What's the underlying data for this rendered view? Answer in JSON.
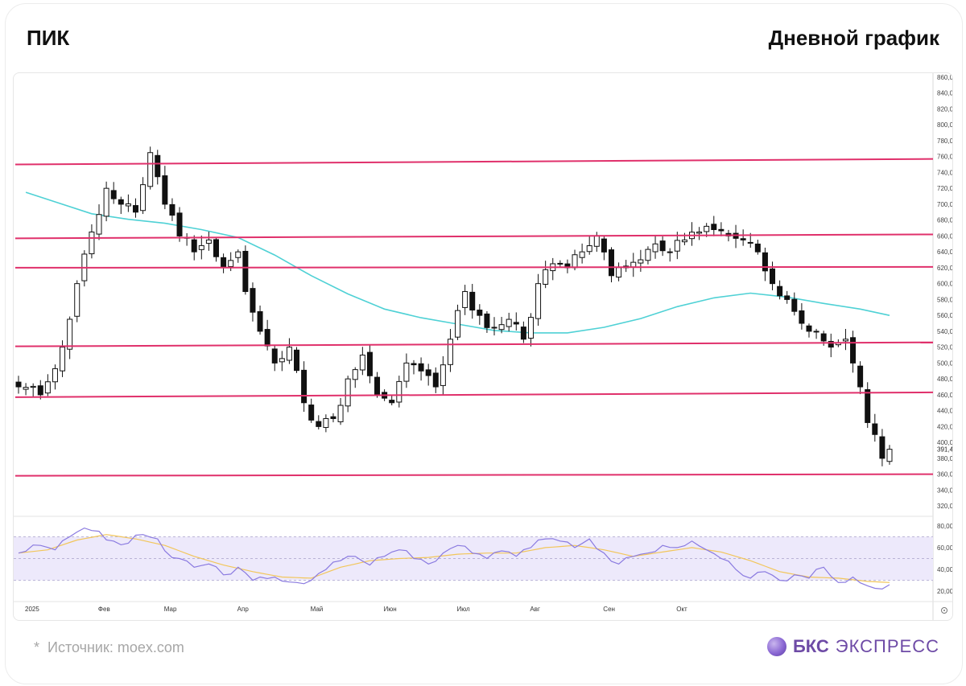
{
  "header": {
    "ticker": "ПИК",
    "timeframe": "Дневной график"
  },
  "footer": {
    "star": "*",
    "source": "Источник: moex.com",
    "brand_strong": "БКС",
    "brand_light": "ЭКСПРЕСС"
  },
  "colors": {
    "level": "#e0306b",
    "ma": "#4fd1d5",
    "candle": "#111111",
    "rsi": "#8a7ae0",
    "rsi_signal": "#f2c65a",
    "rsi_band": "#ede9fb"
  },
  "chart_data": {
    "type": "candlestick",
    "y_ticks": [
      "860,0",
      "840,0",
      "820,0",
      "800,0",
      "780,0",
      "760,0",
      "740,0",
      "720,0",
      "700,0",
      "680,0",
      "660,0",
      "640,0",
      "620,0",
      "600,0",
      "580,0",
      "560,0",
      "540,0",
      "520,0",
      "500,0",
      "480,0",
      "460,0",
      "440,0",
      "420,0",
      "400,0",
      "380,0",
      "360,0",
      "340,0",
      "320,0"
    ],
    "y_range": [
      310,
      865
    ],
    "last_price_label": "391,4",
    "last_price": 391.4,
    "x_labels": [
      "2025",
      "Фев",
      "Мар",
      "Апр",
      "Май",
      "Июн",
      "Июл",
      "Авг",
      "Сен",
      "Окт"
    ],
    "levels": [
      {
        "from": 750,
        "to": 757
      },
      {
        "from": 657,
        "to": 662
      },
      {
        "from": 620,
        "to": 621
      },
      {
        "from": 521,
        "to": 526
      },
      {
        "from": 457,
        "to": 463
      },
      {
        "from": 358,
        "to": 360
      }
    ],
    "ma_points": [
      [
        1,
        715
      ],
      [
        5,
        703
      ],
      [
        10,
        688
      ],
      [
        15,
        681
      ],
      [
        20,
        676
      ],
      [
        25,
        668
      ],
      [
        30,
        658
      ],
      [
        35,
        636
      ],
      [
        40,
        610
      ],
      [
        45,
        587
      ],
      [
        50,
        568
      ],
      [
        55,
        557
      ],
      [
        60,
        549
      ],
      [
        65,
        541
      ],
      [
        70,
        538
      ],
      [
        75,
        538
      ],
      [
        80,
        545
      ],
      [
        85,
        556
      ],
      [
        90,
        571
      ],
      [
        95,
        582
      ],
      [
        100,
        588
      ],
      [
        105,
        583
      ],
      [
        110,
        575
      ],
      [
        115,
        568
      ],
      [
        119,
        560
      ]
    ],
    "close_anchors": [
      [
        0,
        470
      ],
      [
        3,
        460
      ],
      [
        6,
        520
      ],
      [
        8,
        600
      ],
      [
        10,
        665
      ],
      [
        12,
        720
      ],
      [
        14,
        700
      ],
      [
        16,
        690
      ],
      [
        18,
        765
      ],
      [
        20,
        700
      ],
      [
        22,
        660
      ],
      [
        24,
        640
      ],
      [
        26,
        655
      ],
      [
        28,
        620
      ],
      [
        30,
        640
      ],
      [
        31,
        590
      ],
      [
        33,
        540
      ],
      [
        35,
        500
      ],
      [
        37,
        520
      ],
      [
        39,
        450
      ],
      [
        41,
        420
      ],
      [
        43,
        430
      ],
      [
        45,
        480
      ],
      [
        47,
        510
      ],
      [
        49,
        460
      ],
      [
        51,
        450
      ],
      [
        53,
        500
      ],
      [
        55,
        490
      ],
      [
        57,
        470
      ],
      [
        59,
        530
      ],
      [
        61,
        590
      ],
      [
        63,
        560
      ],
      [
        65,
        545
      ],
      [
        67,
        555
      ],
      [
        69,
        530
      ],
      [
        71,
        600
      ],
      [
        73,
        625
      ],
      [
        75,
        620
      ],
      [
        77,
        640
      ],
      [
        79,
        660
      ],
      [
        81,
        610
      ],
      [
        83,
        620
      ],
      [
        85,
        630
      ],
      [
        87,
        650
      ],
      [
        89,
        640
      ],
      [
        91,
        655
      ],
      [
        93,
        665
      ],
      [
        95,
        668
      ],
      [
        97,
        660
      ],
      [
        99,
        655
      ],
      [
        101,
        640
      ],
      [
        103,
        600
      ],
      [
        105,
        580
      ],
      [
        107,
        550
      ],
      [
        109,
        540
      ],
      [
        111,
        520
      ],
      [
        113,
        530
      ],
      [
        114,
        500
      ],
      [
        115,
        470
      ],
      [
        116,
        425
      ],
      [
        117,
        410
      ],
      [
        118,
        380
      ],
      [
        119,
        391.4
      ]
    ],
    "rsi": {
      "y_ticks": [
        "80,00",
        "60,00",
        "40,00",
        "20,00"
      ],
      "y_range": [
        12,
        88
      ],
      "band": [
        30,
        70
      ],
      "mid": 50,
      "rsi_anchors": [
        [
          0,
          55
        ],
        [
          3,
          62
        ],
        [
          5,
          58
        ],
        [
          7,
          70
        ],
        [
          9,
          78
        ],
        [
          11,
          75
        ],
        [
          13,
          66
        ],
        [
          15,
          64
        ],
        [
          17,
          72
        ],
        [
          19,
          68
        ],
        [
          20,
          57
        ],
        [
          22,
          50
        ],
        [
          24,
          42
        ],
        [
          26,
          45
        ],
        [
          28,
          35
        ],
        [
          30,
          42
        ],
        [
          32,
          30
        ],
        [
          35,
          33
        ],
        [
          38,
          28
        ],
        [
          40,
          30
        ],
        [
          42,
          40
        ],
        [
          44,
          48
        ],
        [
          46,
          52
        ],
        [
          48,
          44
        ],
        [
          50,
          52
        ],
        [
          52,
          58
        ],
        [
          54,
          50
        ],
        [
          56,
          45
        ],
        [
          58,
          55
        ],
        [
          60,
          62
        ],
        [
          62,
          55
        ],
        [
          64,
          50
        ],
        [
          66,
          57
        ],
        [
          68,
          52
        ],
        [
          70,
          60
        ],
        [
          72,
          68
        ],
        [
          74,
          66
        ],
        [
          76,
          60
        ],
        [
          78,
          68
        ],
        [
          80,
          55
        ],
        [
          82,
          45
        ],
        [
          84,
          52
        ],
        [
          86,
          55
        ],
        [
          88,
          62
        ],
        [
          90,
          60
        ],
        [
          92,
          66
        ],
        [
          94,
          58
        ],
        [
          96,
          50
        ],
        [
          98,
          40
        ],
        [
          100,
          32
        ],
        [
          102,
          38
        ],
        [
          104,
          30
        ],
        [
          106,
          35
        ],
        [
          108,
          32
        ],
        [
          110,
          42
        ],
        [
          112,
          28
        ],
        [
          114,
          33
        ],
        [
          116,
          25
        ],
        [
          118,
          22
        ],
        [
          119,
          26
        ]
      ],
      "signal_anchors": [
        [
          0,
          55
        ],
        [
          4,
          58
        ],
        [
          8,
          67
        ],
        [
          12,
          72
        ],
        [
          16,
          68
        ],
        [
          20,
          62
        ],
        [
          24,
          52
        ],
        [
          28,
          44
        ],
        [
          32,
          38
        ],
        [
          36,
          33
        ],
        [
          40,
          32
        ],
        [
          44,
          42
        ],
        [
          48,
          48
        ],
        [
          52,
          50
        ],
        [
          56,
          51
        ],
        [
          60,
          54
        ],
        [
          64,
          55
        ],
        [
          68,
          55
        ],
        [
          72,
          60
        ],
        [
          76,
          62
        ],
        [
          80,
          58
        ],
        [
          84,
          52
        ],
        [
          88,
          56
        ],
        [
          92,
          60
        ],
        [
          96,
          56
        ],
        [
          100,
          48
        ],
        [
          104,
          38
        ],
        [
          108,
          33
        ],
        [
          112,
          32
        ],
        [
          116,
          29
        ],
        [
          119,
          28
        ]
      ]
    },
    "grid": false,
    "legend": "none"
  }
}
